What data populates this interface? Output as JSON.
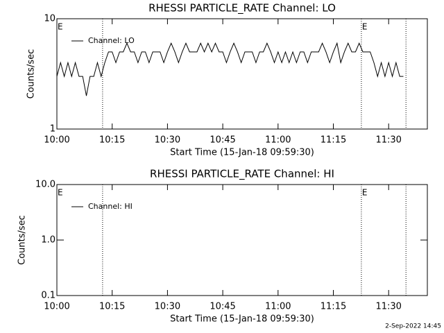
{
  "chart_data": [
    {
      "type": "line",
      "title": "RHESSI PARTICLE_RATE Channel: LO",
      "xlabel": "Start Time (15-Jan-18 09:59:30)",
      "ylabel": "Counts/sec",
      "xlim": [
        600,
        700.5
      ],
      "xticks": [
        {
          "value": 600,
          "label": "10:00"
        },
        {
          "value": 615,
          "label": "10:15"
        },
        {
          "value": 630,
          "label": "10:30"
        },
        {
          "value": 645,
          "label": "10:45"
        },
        {
          "value": 660,
          "label": "11:00"
        },
        {
          "value": 675,
          "label": "11:15"
        },
        {
          "value": 690,
          "label": "11:30"
        }
      ],
      "ylim": [
        1,
        10
      ],
      "yticks": [
        1,
        10
      ],
      "log_y": true,
      "legend": "top-left",
      "vlines": [
        612.4,
        682.6,
        694.7
      ],
      "annotations": [
        {
          "text": "E",
          "x": 600
        },
        {
          "text": "E",
          "x": 682.6
        }
      ],
      "series": [
        {
          "name": "Channel: LO",
          "color": "#000000",
          "x": [
            600,
            601,
            602,
            603,
            604,
            605,
            606,
            607,
            608,
            609,
            610,
            611,
            612,
            613,
            614,
            615,
            616,
            617,
            618,
            619,
            620,
            621,
            622,
            623,
            624,
            625,
            626,
            627,
            628,
            629,
            630,
            631,
            632,
            633,
            634,
            635,
            636,
            637,
            638,
            639,
            640,
            641,
            642,
            643,
            644,
            645,
            646,
            647,
            648,
            649,
            650,
            651,
            652,
            653,
            654,
            655,
            656,
            657,
            658,
            659,
            660,
            661,
            662,
            663,
            664,
            665,
            666,
            667,
            668,
            669,
            670,
            671,
            672,
            673,
            674,
            675,
            676,
            677,
            678,
            679,
            680,
            681,
            682,
            683,
            684,
            685,
            686,
            687,
            688,
            689,
            690,
            691,
            692,
            693,
            694
          ],
          "values": [
            3,
            4,
            3,
            4,
            3,
            4,
            3,
            3,
            2,
            3,
            3,
            4,
            3,
            4,
            5,
            5,
            4,
            5,
            5,
            6,
            5,
            5,
            4,
            5,
            5,
            4,
            5,
            5,
            5,
            4,
            5,
            6,
            5,
            4,
            5,
            6,
            5,
            5,
            5,
            6,
            5,
            6,
            5,
            6,
            5,
            5,
            4,
            5,
            6,
            5,
            4,
            5,
            5,
            5,
            4,
            5,
            5,
            6,
            5,
            4,
            5,
            4,
            5,
            4,
            5,
            4,
            5,
            5,
            4,
            5,
            5,
            5,
            6,
            5,
            4,
            5,
            6,
            4,
            5,
            6,
            5,
            5,
            6,
            5,
            5,
            5,
            4,
            3,
            4,
            3,
            4,
            3,
            4,
            3,
            3
          ]
        }
      ]
    },
    {
      "type": "line",
      "title": "RHESSI PARTICLE_RATE Channel: HI",
      "xlabel": "Start Time (15-Jan-18 09:59:30)",
      "ylabel": "Counts/sec",
      "xlim": [
        600,
        700.5
      ],
      "xticks": [
        {
          "value": 600,
          "label": "10:00"
        },
        {
          "value": 615,
          "label": "10:15"
        },
        {
          "value": 630,
          "label": "10:30"
        },
        {
          "value": 645,
          "label": "10:45"
        },
        {
          "value": 660,
          "label": "11:00"
        },
        {
          "value": 675,
          "label": "11:15"
        },
        {
          "value": 690,
          "label": "11:30"
        }
      ],
      "ylim": [
        0.1,
        10
      ],
      "yticks": [
        0.1,
        {
          "value": 1,
          "label": "1.0"
        },
        {
          "value": 10,
          "label": "10.0"
        }
      ],
      "log_y": true,
      "legend": "top-left",
      "vlines": [
        612.4,
        682.6,
        694.7
      ],
      "annotations": [
        {
          "text": "E",
          "x": 600
        },
        {
          "text": "E",
          "x": 682.6
        }
      ],
      "series": [
        {
          "name": "Channel: HI",
          "color": "#000000",
          "x": [],
          "values": []
        }
      ]
    }
  ],
  "footer": "2-Sep-2022 14:45"
}
